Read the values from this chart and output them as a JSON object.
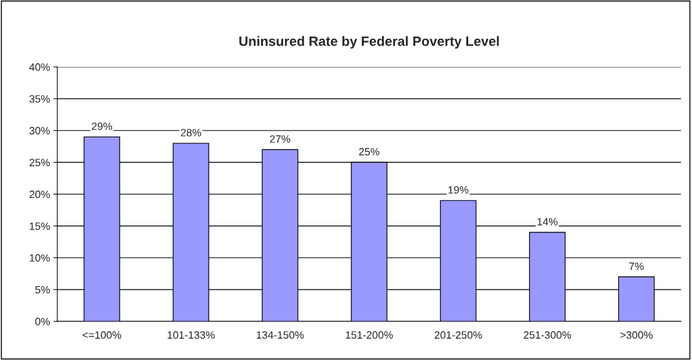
{
  "chart_data": {
    "type": "bar",
    "title": "Uninsured Rate by Federal Poverty Level",
    "categories": [
      "<=100%",
      "101-133%",
      "134-150%",
      "151-200%",
      "201-250%",
      "251-300%",
      ">300%"
    ],
    "values": [
      29,
      28,
      27,
      25,
      19,
      14,
      7
    ],
    "value_labels": [
      "29%",
      "28%",
      "27%",
      "25%",
      "19%",
      "14%",
      "7%"
    ],
    "color": "#9999ff",
    "ylim": [
      0,
      40
    ],
    "yticks": [
      {
        "value": 0,
        "label": "0%"
      },
      {
        "value": 5,
        "label": "5%"
      },
      {
        "value": 10,
        "label": "10%"
      },
      {
        "value": 15,
        "label": "15%"
      },
      {
        "value": 20,
        "label": "20%"
      },
      {
        "value": 25,
        "label": "25%"
      },
      {
        "value": 30,
        "label": "30%"
      },
      {
        "value": 35,
        "label": "35%"
      },
      {
        "value": 40,
        "label": "40%"
      }
    ],
    "grid": "y",
    "legend": false
  }
}
